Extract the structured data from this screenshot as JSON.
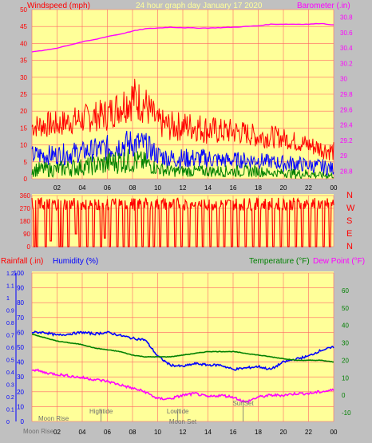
{
  "colors": {
    "bg": "#c0c0c0",
    "plot": "#ffff99",
    "grid": "#ff6666",
    "red": "#ff0000",
    "blue": "#0000ff",
    "green": "#008000",
    "magenta": "#ff00ff",
    "gray": "#707070",
    "text": "#000000"
  },
  "header": {
    "wind_label": "Windspeed (mph)",
    "title": "24 hour graph day   January 17 2020",
    "baro_label": "Barometer (.in)"
  },
  "chart_data": [
    {
      "type": "line",
      "name": "wind-speed-barometer",
      "x_label_hours": [
        "02",
        "04",
        "06",
        "08",
        "10",
        "12",
        "14",
        "16",
        "18",
        "20",
        "22",
        "00"
      ],
      "x_range_hours": [
        0,
        24
      ],
      "y_left": {
        "label": "Windspeed (mph)",
        "range": [
          0,
          50
        ],
        "ticks": [
          0,
          5,
          10,
          15,
          20,
          25,
          30,
          35,
          40,
          45,
          50
        ]
      },
      "y_right": {
        "label": "Barometer (.in)",
        "range": [
          28.7,
          30.9
        ],
        "ticks": [
          "28.8",
          "29",
          "29.2",
          "29.4",
          "29.6",
          "29.8",
          "30",
          "30.2",
          "30.4",
          "30.6",
          "30.8"
        ]
      },
      "series": [
        {
          "name": "gust",
          "color": "#ff0000",
          "x": [
            0,
            1,
            2,
            3,
            4,
            5,
            6,
            7,
            8,
            9,
            10,
            11,
            12,
            13,
            14,
            15,
            16,
            17,
            18,
            19,
            20,
            21,
            22,
            23,
            24
          ],
          "low": [
            12,
            12,
            12,
            13,
            13,
            14,
            14,
            16,
            17,
            16,
            12,
            11,
            11,
            11,
            10,
            10,
            10,
            10,
            9,
            9,
            9,
            8,
            7,
            6,
            5
          ],
          "high": [
            19,
            20,
            20,
            21,
            22,
            23,
            24,
            27,
            31,
            28,
            21,
            20,
            20,
            20,
            19,
            18,
            18,
            17,
            16,
            16,
            15,
            14,
            13,
            12,
            11
          ]
        },
        {
          "name": "wind",
          "color": "#0000ff",
          "x": [
            0,
            1,
            2,
            3,
            4,
            5,
            6,
            7,
            8,
            9,
            10,
            11,
            12,
            13,
            14,
            15,
            16,
            17,
            18,
            19,
            20,
            21,
            22,
            23,
            24
          ],
          "low": [
            4,
            4,
            4,
            4,
            5,
            5,
            5,
            6,
            6,
            6,
            4,
            3,
            3,
            3,
            3,
            3,
            3,
            3,
            3,
            3,
            2,
            2,
            2,
            1,
            1
          ],
          "high": [
            10,
            10,
            10,
            11,
            11,
            12,
            13,
            14,
            15,
            14,
            10,
            9,
            9,
            9,
            9,
            8,
            8,
            8,
            8,
            7,
            7,
            7,
            6,
            6,
            5
          ]
        },
        {
          "name": "green",
          "color": "#008000",
          "x": [
            0,
            1,
            2,
            3,
            4,
            5,
            6,
            7,
            8,
            9,
            10,
            11,
            12,
            13,
            14,
            15,
            16,
            17,
            18,
            19,
            20,
            21,
            22,
            23,
            24
          ],
          "low": [
            0.5,
            0.5,
            0.5,
            0.5,
            1,
            1,
            1,
            1.5,
            1.5,
            1.5,
            1,
            0.5,
            0.5,
            0.5,
            0.5,
            0.5,
            0.5,
            0.5,
            0.5,
            0.5,
            0.5,
            0,
            0,
            0,
            0
          ],
          "high": [
            5,
            5,
            5,
            6,
            6,
            7,
            8,
            9,
            9,
            8,
            5,
            4,
            4,
            4,
            4,
            4,
            4,
            4,
            4,
            3,
            3,
            3,
            3,
            2,
            2
          ]
        },
        {
          "name": "barometer",
          "color": "#ff00ff",
          "axis": "right",
          "x": [
            0,
            1,
            2,
            3,
            4,
            5,
            6,
            7,
            8,
            9,
            10,
            11,
            12,
            13,
            14,
            15,
            16,
            17,
            18,
            19,
            20,
            21,
            22,
            23,
            24
          ],
          "y": [
            30.35,
            30.37,
            30.4,
            30.44,
            30.48,
            30.51,
            30.55,
            30.58,
            30.62,
            30.65,
            30.66,
            30.67,
            30.665,
            30.66,
            30.66,
            30.665,
            30.67,
            30.68,
            30.69,
            30.71,
            30.71,
            30.71,
            30.71,
            30.72,
            30.7
          ]
        }
      ]
    },
    {
      "type": "line",
      "name": "wind-direction",
      "x_range_hours": [
        0,
        24
      ],
      "y_left": {
        "range": [
          0,
          360
        ],
        "ticks": [
          0,
          90,
          180,
          270,
          360
        ]
      },
      "compass": [
        "N",
        "W",
        "S",
        "E",
        "N"
      ],
      "series": [
        {
          "name": "direction",
          "color": "#ff0000",
          "base": 300,
          "drops": [
            0.2,
            0.4,
            1.1,
            1.5,
            2.2,
            2.4,
            2.9,
            3.5,
            3.8,
            4.4,
            4.9,
            5.5,
            5.8,
            6.2,
            6.8,
            7.3,
            7.7,
            8.3,
            8.8,
            9.3,
            9.7,
            10.2,
            10.8,
            11.4,
            11.9,
            12.5,
            13.1,
            13.6,
            14.2,
            14.8,
            15.3,
            15.9,
            16.4,
            17.0,
            17.6,
            18.1,
            18.7,
            19.2,
            19.8,
            20.4,
            21.0,
            21.5,
            22.1,
            22.6,
            23.2,
            23.7
          ],
          "drop_to": [
            0,
            0,
            0,
            40,
            0,
            0,
            0,
            90,
            0,
            0,
            0,
            0,
            60,
            0,
            0,
            0,
            0,
            0,
            0,
            0,
            0,
            0,
            0,
            0,
            0,
            0,
            0,
            0,
            0,
            0,
            0,
            0,
            0,
            0,
            0,
            0,
            0,
            0,
            0,
            0,
            0,
            0,
            0,
            0,
            0,
            0
          ]
        }
      ]
    },
    {
      "type": "line",
      "name": "temperature-humidity",
      "x_label_hours": [
        "02",
        "04",
        "06",
        "08",
        "10",
        "12",
        "14",
        "16",
        "18",
        "20",
        "22",
        "00"
      ],
      "x_range_hours": [
        0,
        24
      ],
      "y_far_left": {
        "label": "Rainfall (.in)",
        "range": [
          0,
          1.2
        ],
        "ticks": [
          "0",
          "0.1",
          "0.2",
          "0.3",
          "0.4",
          "0.5",
          "0.6",
          "0.7",
          "0.8",
          "0.9",
          "1",
          "1.1",
          "1.2"
        ]
      },
      "y_left": {
        "label": "Humidity (%)",
        "range": [
          0,
          100
        ],
        "ticks": [
          0,
          10,
          20,
          30,
          40,
          50,
          60,
          70,
          80,
          90,
          100
        ]
      },
      "y_right": {
        "label": "Temperature (°F)",
        "label2": "Dew Point (°F)",
        "range": [
          -15,
          70
        ],
        "ticks": [
          -10,
          0,
          10,
          20,
          30,
          40,
          50,
          60
        ]
      },
      "series": [
        {
          "name": "humidity",
          "color": "#0000ff",
          "axis": "left",
          "x": [
            0,
            1,
            2,
            3,
            4,
            5,
            6,
            7,
            8,
            9,
            10,
            11,
            12,
            13,
            14,
            15,
            16,
            17,
            18,
            19,
            20,
            21,
            22,
            23,
            24
          ],
          "y": [
            60,
            60,
            58,
            59,
            60,
            59,
            60,
            58,
            56,
            55,
            44,
            38,
            37,
            39,
            38,
            38,
            35,
            36,
            37,
            35,
            40,
            42,
            44,
            48,
            50
          ]
        },
        {
          "name": "temperature",
          "color": "#008000",
          "axis": "right",
          "x": [
            0,
            1,
            2,
            3,
            4,
            5,
            6,
            7,
            8,
            9,
            10,
            11,
            12,
            13,
            14,
            15,
            16,
            17,
            18,
            19,
            20,
            21,
            22,
            23,
            24
          ],
          "y": [
            35,
            33,
            31,
            30,
            29,
            27,
            26,
            25,
            23,
            22,
            22,
            22,
            23,
            24,
            25,
            25,
            25,
            24,
            23,
            22,
            21,
            20,
            20,
            20,
            19
          ]
        },
        {
          "name": "dew-point",
          "color": "#ff00ff",
          "axis": "right",
          "x": [
            0,
            1,
            2,
            3,
            4,
            5,
            6,
            7,
            8,
            9,
            10,
            11,
            12,
            13,
            14,
            15,
            16,
            17,
            18,
            19,
            20,
            21,
            22,
            23,
            24
          ],
          "y": [
            15,
            13,
            12,
            11,
            10,
            9,
            8,
            6,
            4,
            2,
            -2,
            -2,
            0,
            1,
            -1,
            0,
            -1,
            -4,
            -1,
            0,
            0,
            1,
            1,
            2,
            3
          ]
        }
      ],
      "events": [
        {
          "label": "Moon Rise",
          "hour": 0.3,
          "row": "bottom"
        },
        {
          "label": "Moon Rise",
          "hour": 0.3,
          "row": "top"
        },
        {
          "label": "Hightide",
          "hour": 5.5,
          "row": "middle"
        },
        {
          "label": "Lowtide",
          "hour": 11.6,
          "row": "middle"
        },
        {
          "label": "Moon Set",
          "hour": 12.0,
          "row": "lower"
        },
        {
          "label": "SunSet",
          "hour": 16.8,
          "row": "upper"
        }
      ]
    }
  ]
}
